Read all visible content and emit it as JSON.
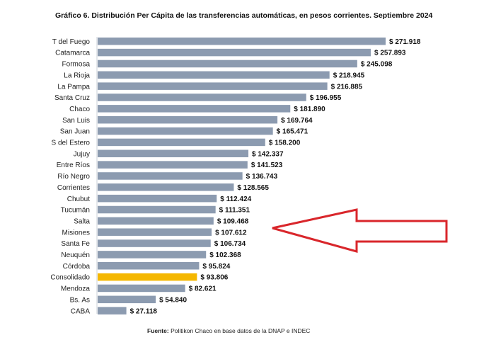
{
  "chart_data": {
    "type": "bar",
    "orientation": "horizontal",
    "title": "Gráfico 6. Distribución Per Cápita de las transferencias automáticas, en pesos corrientes. Septiembre 2024",
    "categories": [
      "T del Fuego",
      "Catamarca",
      "Formosa",
      "La Rioja",
      "La Pampa",
      "Santa Cruz",
      "Chaco",
      "San Luis",
      "San Juan",
      "S del Estero",
      "Jujuy",
      "Entre Ríos",
      "Río Negro",
      "Corrientes",
      "Chubut",
      "Tucumán",
      "Salta",
      "Misiones",
      "Santa Fe",
      "Neuquén",
      "Córdoba",
      "Consolidado",
      "Mendoza",
      "Bs. As",
      "CABA"
    ],
    "values": [
      271918,
      257893,
      245098,
      218945,
      216885,
      196955,
      181890,
      169764,
      165471,
      158200,
      142337,
      141523,
      136743,
      128565,
      112424,
      111351,
      109468,
      107612,
      106734,
      102368,
      95824,
      93806,
      82621,
      54840,
      27118
    ],
    "value_labels": [
      "$ 271.918",
      "$ 257.893",
      "$ 245.098",
      "$ 218.945",
      "$ 216.885",
      "$ 196.955",
      "$ 181.890",
      "$ 169.764",
      "$ 165.471",
      "$ 158.200",
      "$ 142.337",
      "$ 141.523",
      "$ 136.743",
      "$ 128.565",
      "$ 112.424",
      "$ 111.351",
      "$ 109.468",
      "$ 107.612",
      "$ 106.734",
      "$ 102.368",
      "$ 95.824",
      "$ 93.806",
      "$ 82.621",
      "$ 54.840",
      "$ 27.118"
    ],
    "highlight_category": "Consolidado",
    "annotation_arrow_target": "Misiones",
    "colors": {
      "bar": "#8c9bb0",
      "highlight": "#f5b700",
      "arrow": "#d9262b",
      "text": "#222222"
    },
    "grid": false,
    "legend": "none"
  },
  "source": {
    "label": "Fuente:",
    "text": " Politikon Chaco en base datos de la DNAP e INDEC"
  }
}
